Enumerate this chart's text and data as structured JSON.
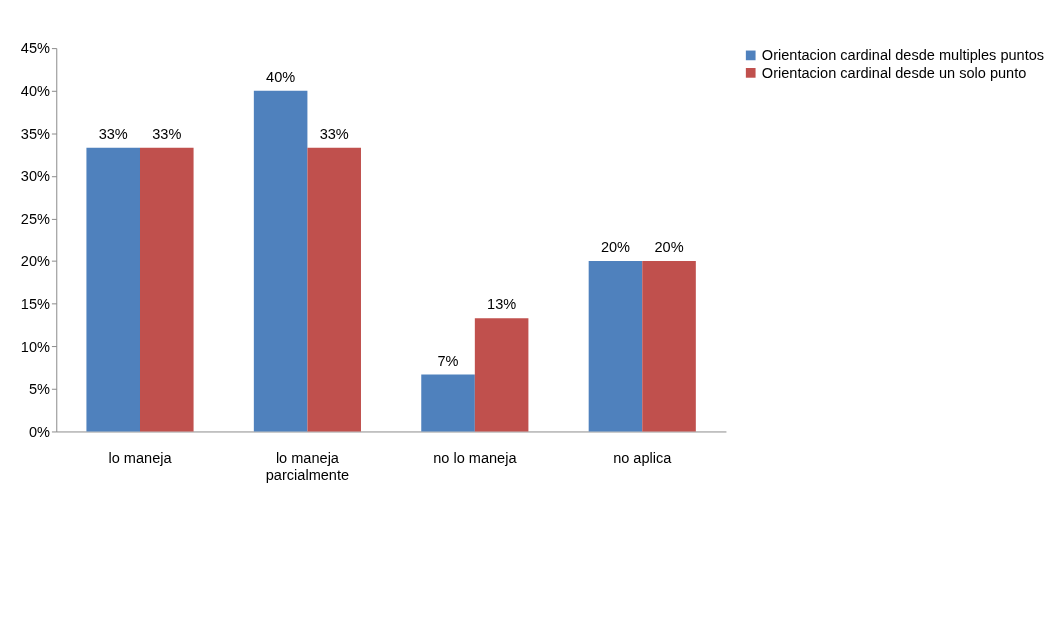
{
  "chart_data": {
    "type": "bar",
    "categories": [
      "lo maneja",
      "lo maneja parcialmente",
      "no lo maneja",
      "no aplica"
    ],
    "series": [
      {
        "name": "Orientacion cardinal desde multiples puntos",
        "color": "#4f81bd",
        "values": [
          33.3,
          40,
          6.7,
          20
        ],
        "value_labels": [
          "33%",
          "40%",
          "7%",
          "20%"
        ]
      },
      {
        "name": "Orientacion cardinal desde un solo punto",
        "color": "#c0504d",
        "values": [
          33.3,
          33.3,
          13.3,
          20
        ],
        "value_labels": [
          "33%",
          "33%",
          "13%",
          "20%"
        ]
      }
    ],
    "ylim": [
      0,
      45
    ],
    "yticks": [
      {
        "value": 0,
        "label": "0%"
      },
      {
        "value": 5,
        "label": "5%"
      },
      {
        "value": 10,
        "label": "10%"
      },
      {
        "value": 15,
        "label": "15%"
      },
      {
        "value": 20,
        "label": "20%"
      },
      {
        "value": 25,
        "label": "25%"
      },
      {
        "value": 30,
        "label": "30%"
      },
      {
        "value": 35,
        "label": "35%"
      },
      {
        "value": 40,
        "label": "40%"
      },
      {
        "value": 45,
        "label": "45%"
      }
    ],
    "grid": false,
    "legend": "right"
  }
}
